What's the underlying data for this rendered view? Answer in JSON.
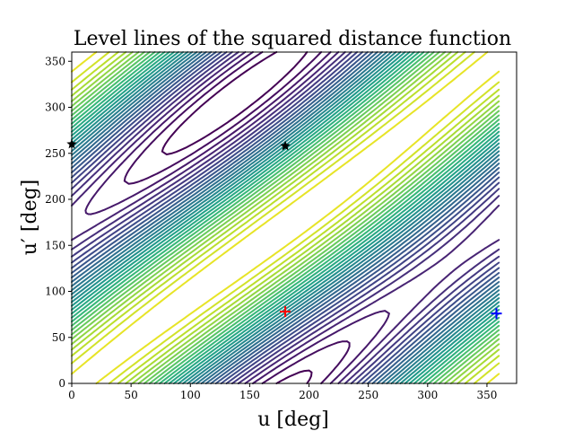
{
  "chart_data": {
    "type": "contour",
    "title": "Level lines of the squared distance function",
    "xlabel": "u [deg]",
    "ylabel": "u′ [deg]",
    "xlim": [
      0,
      375
    ],
    "ylim": [
      0,
      360
    ],
    "xticks": [
      0,
      50,
      100,
      150,
      200,
      250,
      300,
      350
    ],
    "yticks": [
      0,
      50,
      100,
      150,
      200,
      250,
      300,
      350
    ],
    "grid": false,
    "colormap": "viridis",
    "contour_levels": 30,
    "field_extent": {
      "x": [
        0,
        360
      ],
      "y": [
        0,
        360
      ]
    },
    "markers": [
      {
        "name": "minimum",
        "x": 180,
        "y": 78,
        "symbol": "+",
        "color": "#ff0000"
      },
      {
        "name": "marker-blue",
        "x": 358,
        "y": 76,
        "symbol": "+",
        "color": "#0000ff"
      },
      {
        "name": "saddle-a",
        "x": 180,
        "y": 258,
        "symbol": "star",
        "color": "#000000"
      },
      {
        "name": "saddle-b",
        "x": 0,
        "y": 260,
        "symbol": "star",
        "color": "#000000"
      }
    ]
  }
}
